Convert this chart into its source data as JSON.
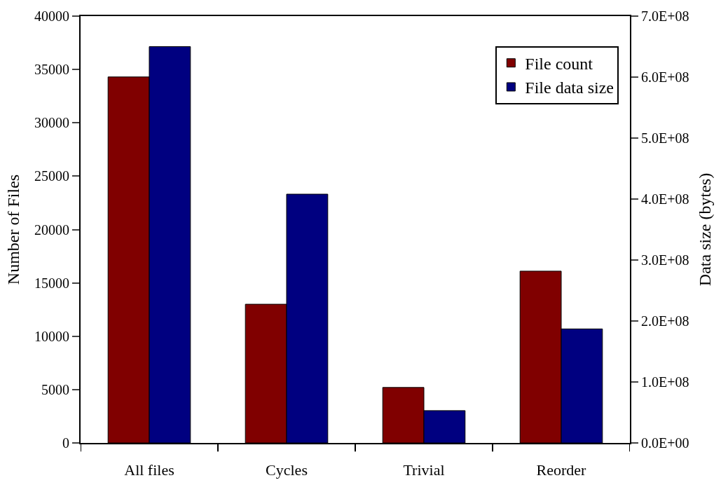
{
  "chart_data": {
    "type": "bar",
    "categories": [
      "All files",
      "Cycles",
      "Trivial",
      "Reorder"
    ],
    "ylabel": "Number of Files",
    "y2label": "Data size (bytes)",
    "series": [
      {
        "name": "File count",
        "color": "#800000",
        "values": [
          34300,
          13000,
          5200,
          16100
        ]
      },
      {
        "name": "File data size",
        "color": "#000080",
        "axis": "y2",
        "values": [
          650000000,
          408000000,
          53000000,
          187000000
        ]
      }
    ],
    "ylim": [
      0,
      40000
    ],
    "yticks": [
      0,
      5000,
      10000,
      15000,
      20000,
      25000,
      30000,
      35000,
      40000
    ],
    "y2lim": [
      0,
      700000000
    ],
    "y2ticks": [
      {
        "value": 0,
        "label": "0.0E+00"
      },
      {
        "value": 100000000,
        "label": "1.0E+08"
      },
      {
        "value": 200000000,
        "label": "2.0E+08"
      },
      {
        "value": 300000000,
        "label": "3.0E+08"
      },
      {
        "value": 400000000,
        "label": "4.0E+08"
      },
      {
        "value": 500000000,
        "label": "5.0E+08"
      },
      {
        "value": 600000000,
        "label": "6.0E+08"
      },
      {
        "value": 700000000,
        "label": "7.0E+08"
      }
    ],
    "legend": "top right"
  }
}
